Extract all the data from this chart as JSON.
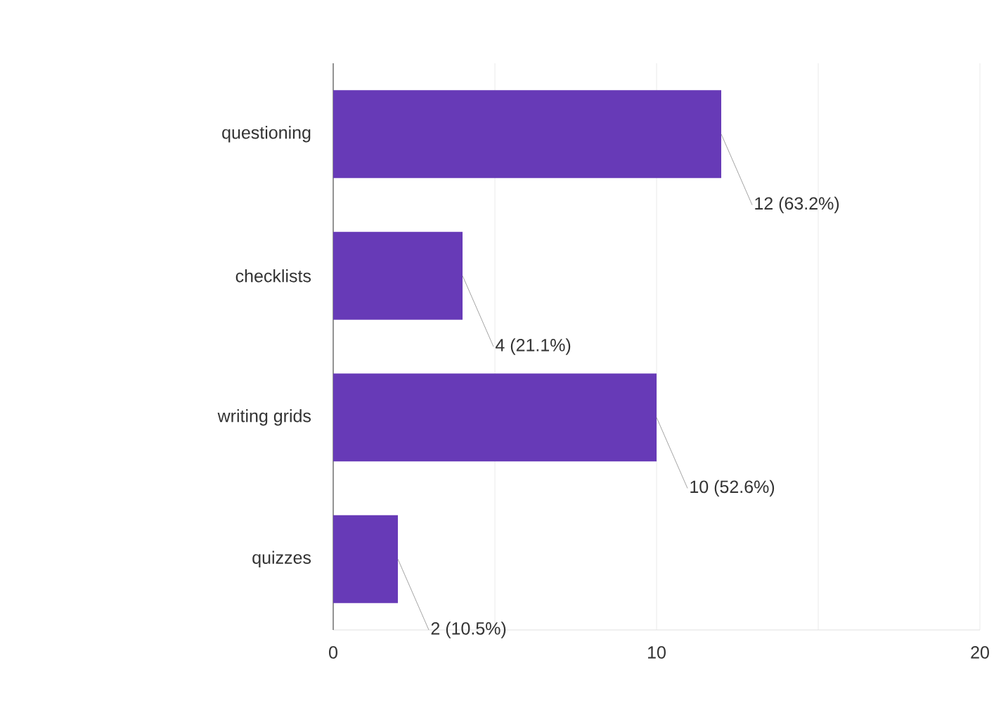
{
  "chart_data": {
    "type": "bar",
    "orientation": "horizontal",
    "categories": [
      "questioning",
      "checklists",
      "writing grids",
      "quizzes"
    ],
    "values": [
      12,
      4,
      10,
      2
    ],
    "value_labels": [
      "12 (63.2%)",
      "4 (21.1%)",
      "10 (52.6%)",
      "2 (10.5%)"
    ],
    "color": "#673ab7",
    "xlim": [
      0,
      20
    ],
    "xticks": [
      0,
      {
        "value": 5,
        "label": null
      },
      10,
      {
        "value": 15,
        "label": null
      },
      20
    ],
    "grid": "x"
  }
}
